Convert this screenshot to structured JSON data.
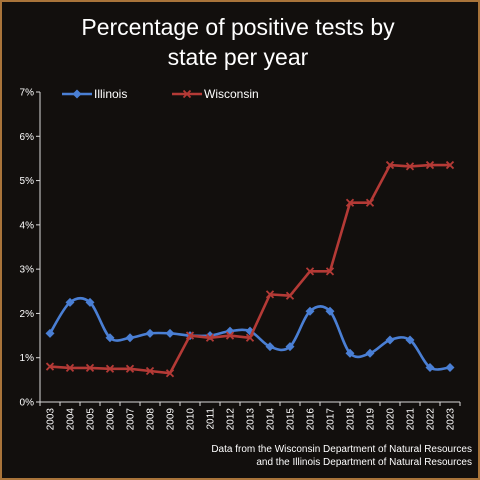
{
  "chart_data": {
    "type": "line",
    "title": [
      "Percentage of positive tests by",
      "state per year"
    ],
    "x": [
      "2003",
      "2004",
      "2005",
      "2006",
      "2007",
      "2008",
      "2009",
      "2010",
      "2011",
      "2012",
      "2013",
      "2014",
      "2015",
      "2016",
      "2017",
      "2018",
      "2019",
      "2020",
      "2021",
      "2022",
      "2023"
    ],
    "series": [
      {
        "name": "Illinois",
        "color": "#4a7fd4",
        "marker": "diamond",
        "smooth": true,
        "values": [
          1.55,
          2.25,
          2.25,
          1.45,
          1.45,
          1.55,
          1.55,
          1.5,
          1.5,
          1.6,
          1.6,
          1.25,
          1.25,
          2.05,
          2.05,
          1.1,
          1.1,
          1.4,
          1.4,
          0.78,
          0.78
        ]
      },
      {
        "name": "Wisconsin",
        "color": "#b43a36",
        "marker": "x",
        "smooth": false,
        "values": [
          0.8,
          0.77,
          0.77,
          0.75,
          0.75,
          0.7,
          0.65,
          1.5,
          1.45,
          1.5,
          1.45,
          2.43,
          2.4,
          2.95,
          2.95,
          4.5,
          4.5,
          5.35,
          5.32,
          5.35,
          5.35
        ]
      }
    ],
    "ylim": [
      0,
      7
    ],
    "yticks": [
      "0%",
      "1%",
      "2%",
      "3%",
      "4%",
      "5%",
      "6%",
      "7%"
    ],
    "grid": false,
    "legend": "top-left",
    "annotation": [
      "Data from the Wisconsin Department of Natural Resources",
      "and the Illinois Department of Natural Resources"
    ]
  }
}
